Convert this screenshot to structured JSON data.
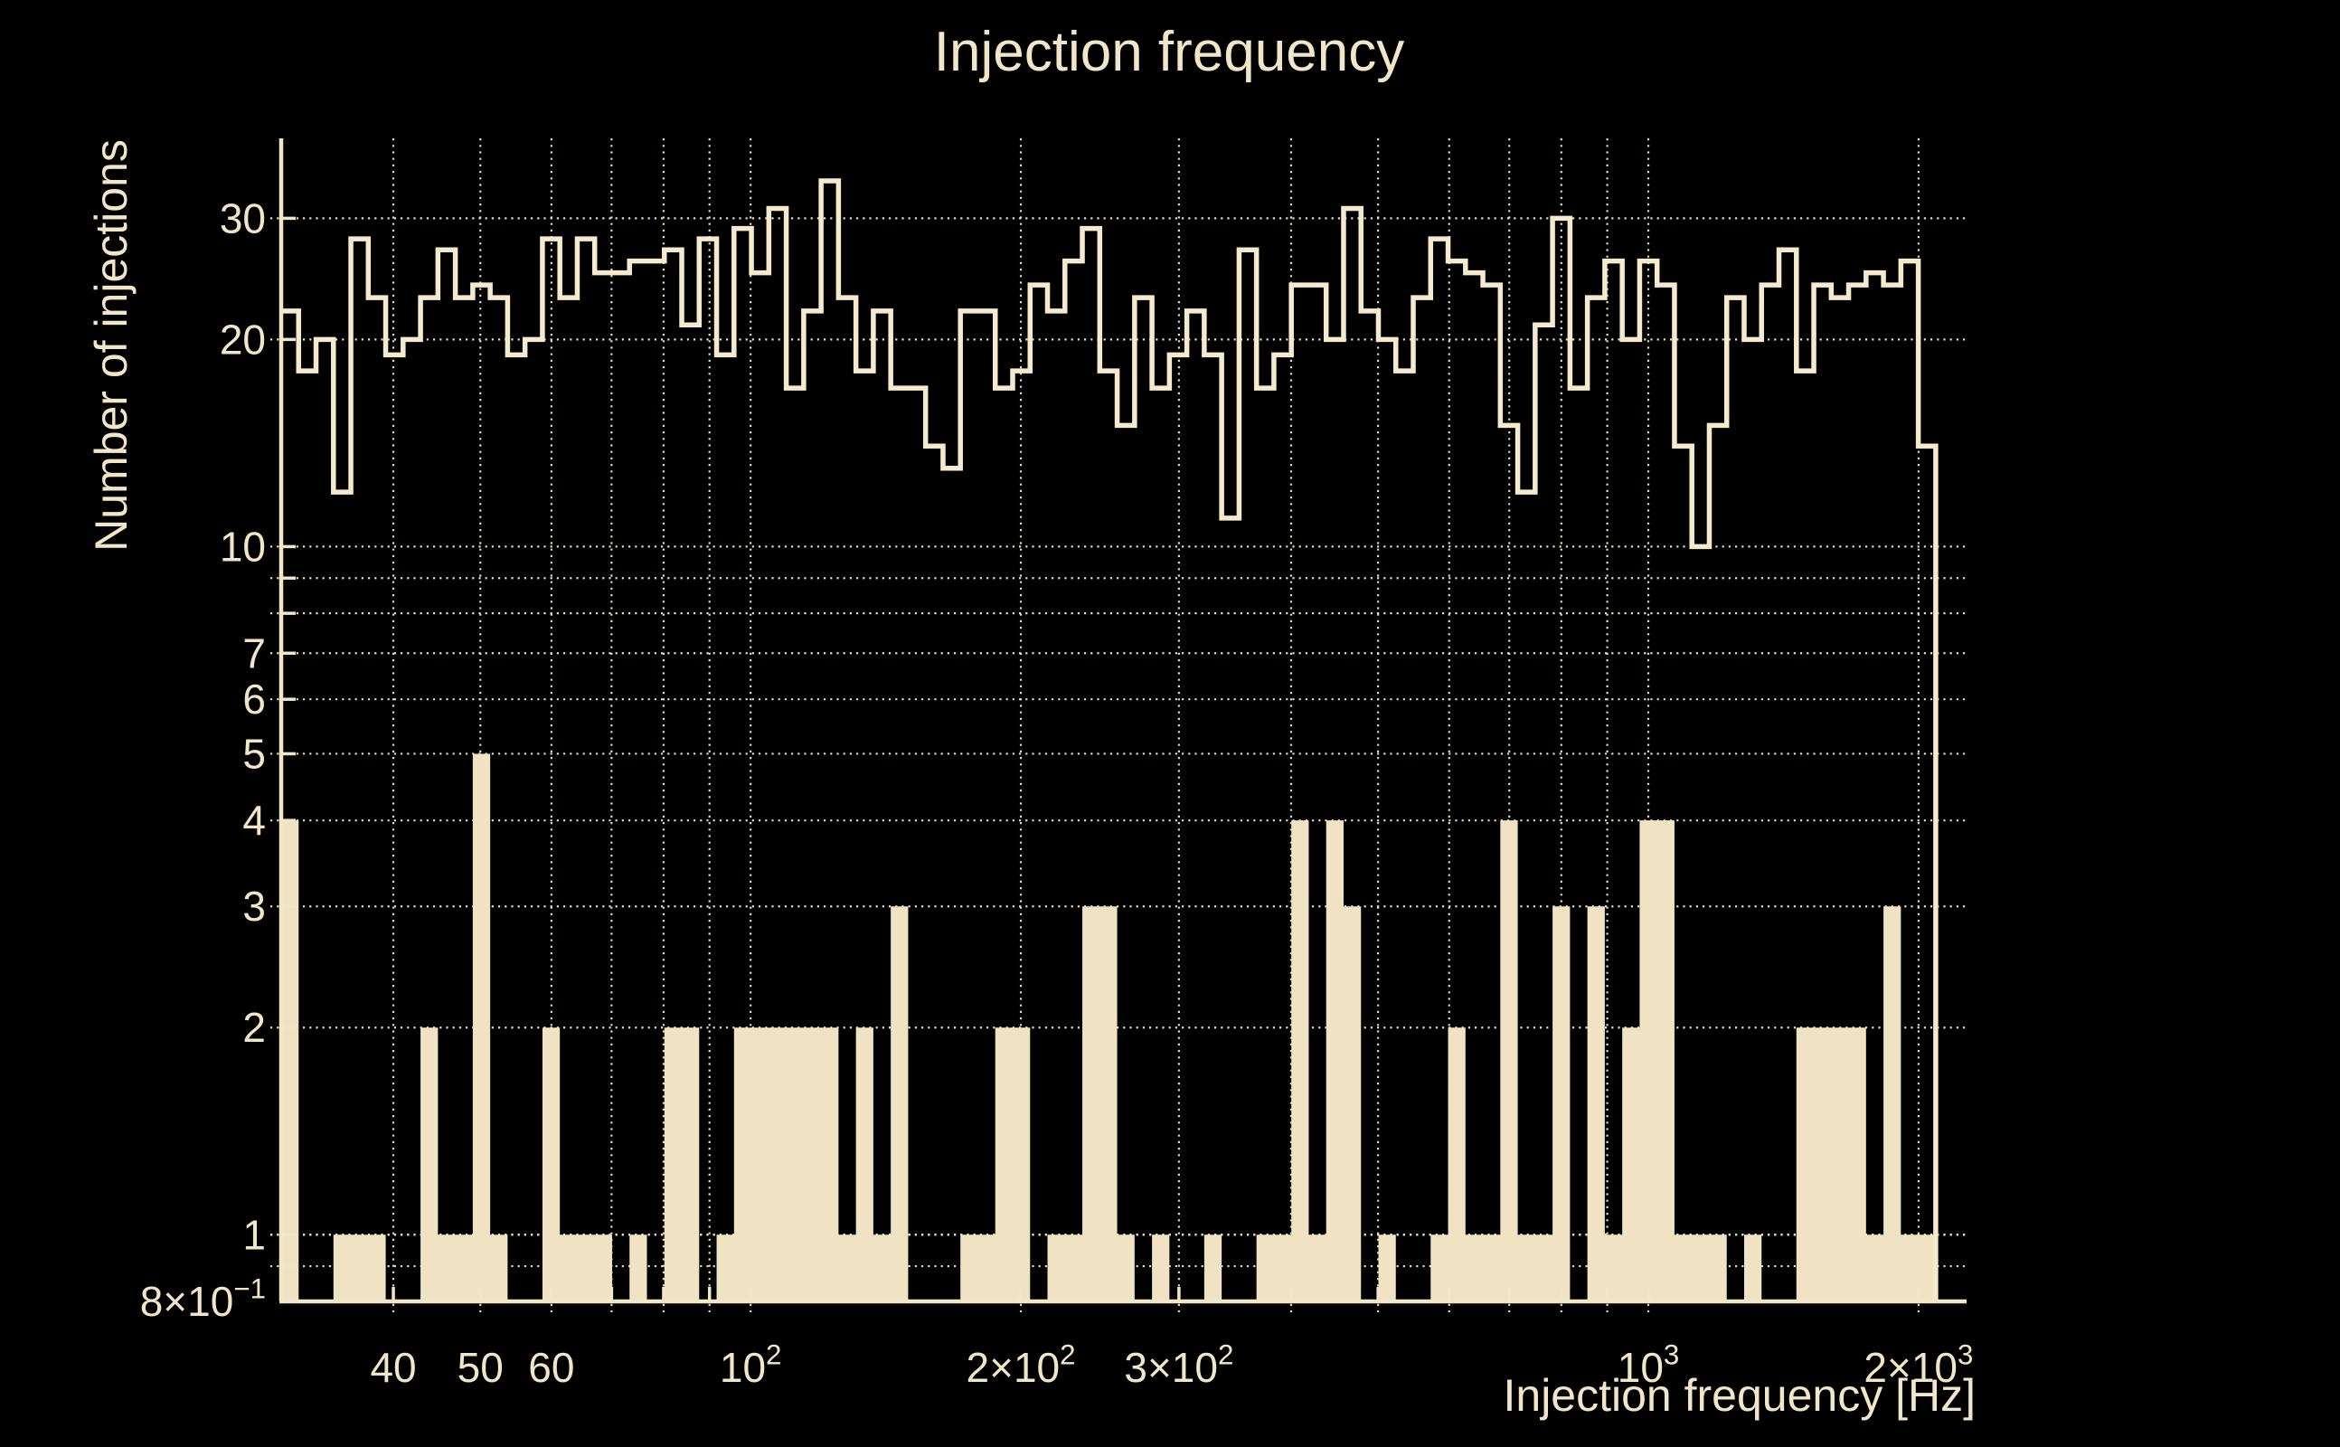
{
  "title": "Injection frequency",
  "chart_data": {
    "type": "bar",
    "subtype": "log-log step histograms",
    "title": "Injection frequency",
    "xlabel": "Injection frequency [Hz]",
    "ylabel": "Number of injections",
    "x_scale": "log",
    "y_scale": "log",
    "xlim_hz": [
      30,
      2262
    ],
    "ylim": [
      0.8,
      39.2
    ],
    "grid": "dotted",
    "colors": {
      "background": "#000000",
      "foreground": "#F2E6C8",
      "fill": "#EFE3C4",
      "line": "#F5EACD"
    },
    "histogram_bins": {
      "x_start_hz": 30,
      "bin_width_dex": 0.0194,
      "n_bins": 95
    },
    "series": [
      {
        "name": "all injections (outline step histogram)",
        "style": "step-outline",
        "values": [
          22,
          18,
          20,
          12,
          28,
          23,
          19,
          20,
          23,
          27,
          23,
          24,
          23,
          19,
          20,
          28,
          23,
          28,
          25,
          25,
          26,
          26,
          27,
          21,
          28,
          19,
          29,
          25,
          31,
          17,
          22,
          34,
          23,
          18,
          22,
          17,
          17,
          14,
          13,
          22,
          22,
          17,
          18,
          24,
          22,
          26,
          29,
          18,
          15,
          23,
          17,
          19,
          22,
          19,
          11,
          27,
          17,
          19,
          24,
          24,
          20,
          31,
          22,
          20,
          18,
          23,
          28,
          26,
          25,
          24,
          15,
          12,
          21,
          30,
          17,
          23,
          26,
          20,
          26,
          24,
          14,
          10,
          15,
          23,
          20,
          24,
          27,
          18,
          24,
          23,
          24,
          25,
          24,
          26,
          14
        ]
      },
      {
        "name": "subset of injections (filled histogram)",
        "style": "filled",
        "values": [
          4,
          0,
          0,
          1,
          1,
          1,
          0,
          0,
          2,
          1,
          1,
          5,
          1,
          0,
          0,
          2,
          1,
          1,
          1,
          0,
          1,
          0,
          2,
          2,
          0,
          1,
          2,
          2,
          2,
          2,
          2,
          2,
          1,
          2,
          1,
          3,
          0,
          0,
          0,
          1,
          1,
          2,
          2,
          0,
          1,
          1,
          3,
          3,
          1,
          0,
          1,
          0,
          0,
          1,
          0,
          0,
          1,
          1,
          4,
          1,
          4,
          3,
          0,
          1,
          0,
          0,
          1,
          2,
          1,
          1,
          4,
          1,
          1,
          3,
          0,
          3,
          1,
          2,
          4,
          4,
          1,
          1,
          1,
          0,
          1,
          0,
          0,
          2,
          2,
          2,
          2,
          1,
          3,
          1,
          1
        ]
      }
    ],
    "x_gridlines_hz": [
      40,
      50,
      60,
      70,
      80,
      90,
      100,
      200,
      300,
      400,
      500,
      600,
      700,
      800,
      900,
      1000,
      2000
    ],
    "y_gridlines": [
      0.9,
      1,
      2,
      3,
      4,
      5,
      6,
      7,
      8,
      9,
      10,
      20,
      30
    ],
    "x_ticks": [
      {
        "v": 40,
        "main": "40",
        "sup": ""
      },
      {
        "v": 50,
        "main": "50",
        "sup": ""
      },
      {
        "v": 60,
        "main": "60",
        "sup": ""
      },
      {
        "v": 100,
        "main": "10",
        "sup": "2"
      },
      {
        "v": 200,
        "main": "2×10",
        "sup": "2"
      },
      {
        "v": 300,
        "main": "3×10",
        "sup": "2"
      },
      {
        "v": 1000,
        "main": "10",
        "sup": "3"
      },
      {
        "v": 2000,
        "main": "2×10",
        "sup": "3"
      }
    ],
    "y_ticks": [
      {
        "v": 30,
        "main": "30",
        "sup": ""
      },
      {
        "v": 20,
        "main": "20",
        "sup": ""
      },
      {
        "v": 10,
        "main": "10",
        "sup": ""
      },
      {
        "v": 7,
        "main": "7",
        "sup": ""
      },
      {
        "v": 6,
        "main": "6",
        "sup": ""
      },
      {
        "v": 5,
        "main": "5",
        "sup": ""
      },
      {
        "v": 4,
        "main": "4",
        "sup": ""
      },
      {
        "v": 3,
        "main": "3",
        "sup": ""
      },
      {
        "v": 2,
        "main": "2",
        "sup": ""
      },
      {
        "v": 1,
        "main": "1",
        "sup": ""
      },
      {
        "v": 0.8,
        "main": "8×10",
        "sup": "−1"
      }
    ]
  }
}
